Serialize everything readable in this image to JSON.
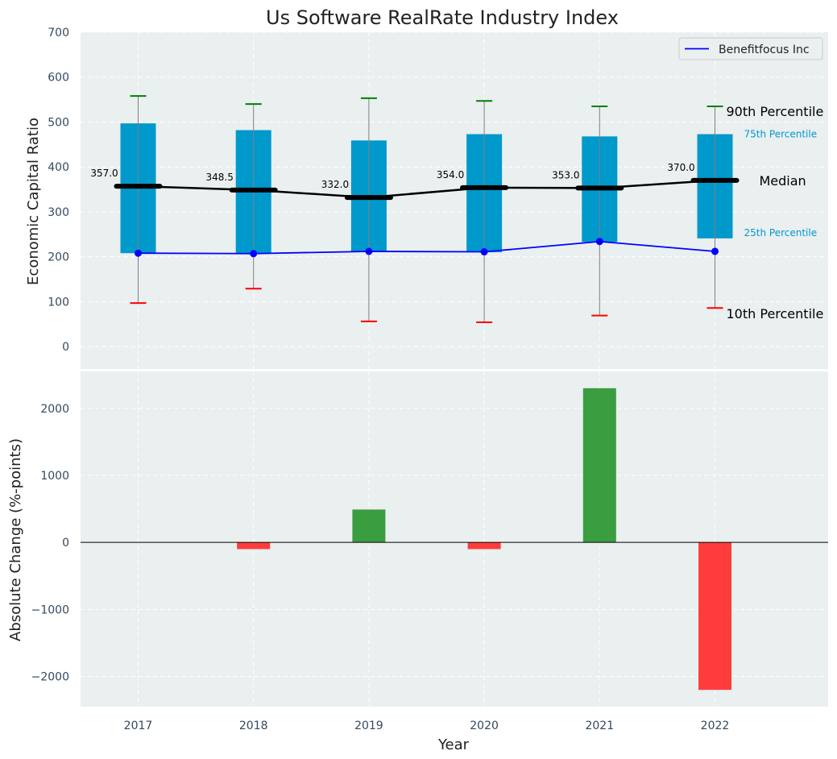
{
  "chart_data": [
    {
      "type": "box",
      "title": "Us Software RealRate Industry Index",
      "ylabel": "Economic Capital Ratio",
      "ylim": [
        -50,
        700
      ],
      "yticks": [
        0,
        100,
        200,
        300,
        400,
        500,
        600,
        700
      ],
      "grid": true,
      "legend": {
        "position": "top-right",
        "entries": [
          "Benefitfocus Inc"
        ]
      },
      "categories": [
        "2017",
        "2018",
        "2019",
        "2020",
        "2021",
        "2022"
      ],
      "p10": [
        97,
        129,
        56,
        54,
        69,
        86
      ],
      "p25": [
        208,
        207,
        211,
        210,
        233,
        241
      ],
      "median": [
        357.0,
        348.5,
        332.0,
        354.0,
        353.0,
        370.0
      ],
      "median_labels": [
        "357.0",
        "348.5",
        "332.0",
        "354.0",
        "353.0",
        "370.0"
      ],
      "p75": [
        497,
        482,
        459,
        473,
        468,
        473
      ],
      "p90": [
        558,
        540,
        553,
        547,
        535,
        535
      ],
      "series": [
        {
          "name": "Benefitfocus Inc",
          "values": [
            208,
            207,
            212,
            211,
            234,
            212
          ],
          "color": "#0000ff"
        }
      ],
      "annotations": {
        "p90": "90th Percentile",
        "p75": "75th Percentile",
        "median": "Median",
        "p25": "25th Percentile",
        "p10": "10th Percentile"
      },
      "colors": {
        "box": "#0099cc",
        "median": "#000000",
        "p90_cap": "#008000",
        "p10_cap": "#ff0000",
        "plot_bg": "#eaeff0"
      }
    },
    {
      "type": "bar",
      "xlabel": "Year",
      "ylabel": "Absolute Change (%-points)",
      "ylim": [
        -2450,
        2550
      ],
      "yticks": [
        -2000,
        -1000,
        0,
        1000,
        2000
      ],
      "ytick_labels": [
        "−2000",
        "−1000",
        "0",
        "1000",
        "2000"
      ],
      "categories": [
        "2017",
        "2018",
        "2019",
        "2020",
        "2021",
        "2022"
      ],
      "values": [
        0,
        -100,
        490,
        -100,
        2300,
        -2200
      ],
      "colors": {
        "positive": "#3a9d3f",
        "negative": "#ff3c3c"
      }
    }
  ]
}
